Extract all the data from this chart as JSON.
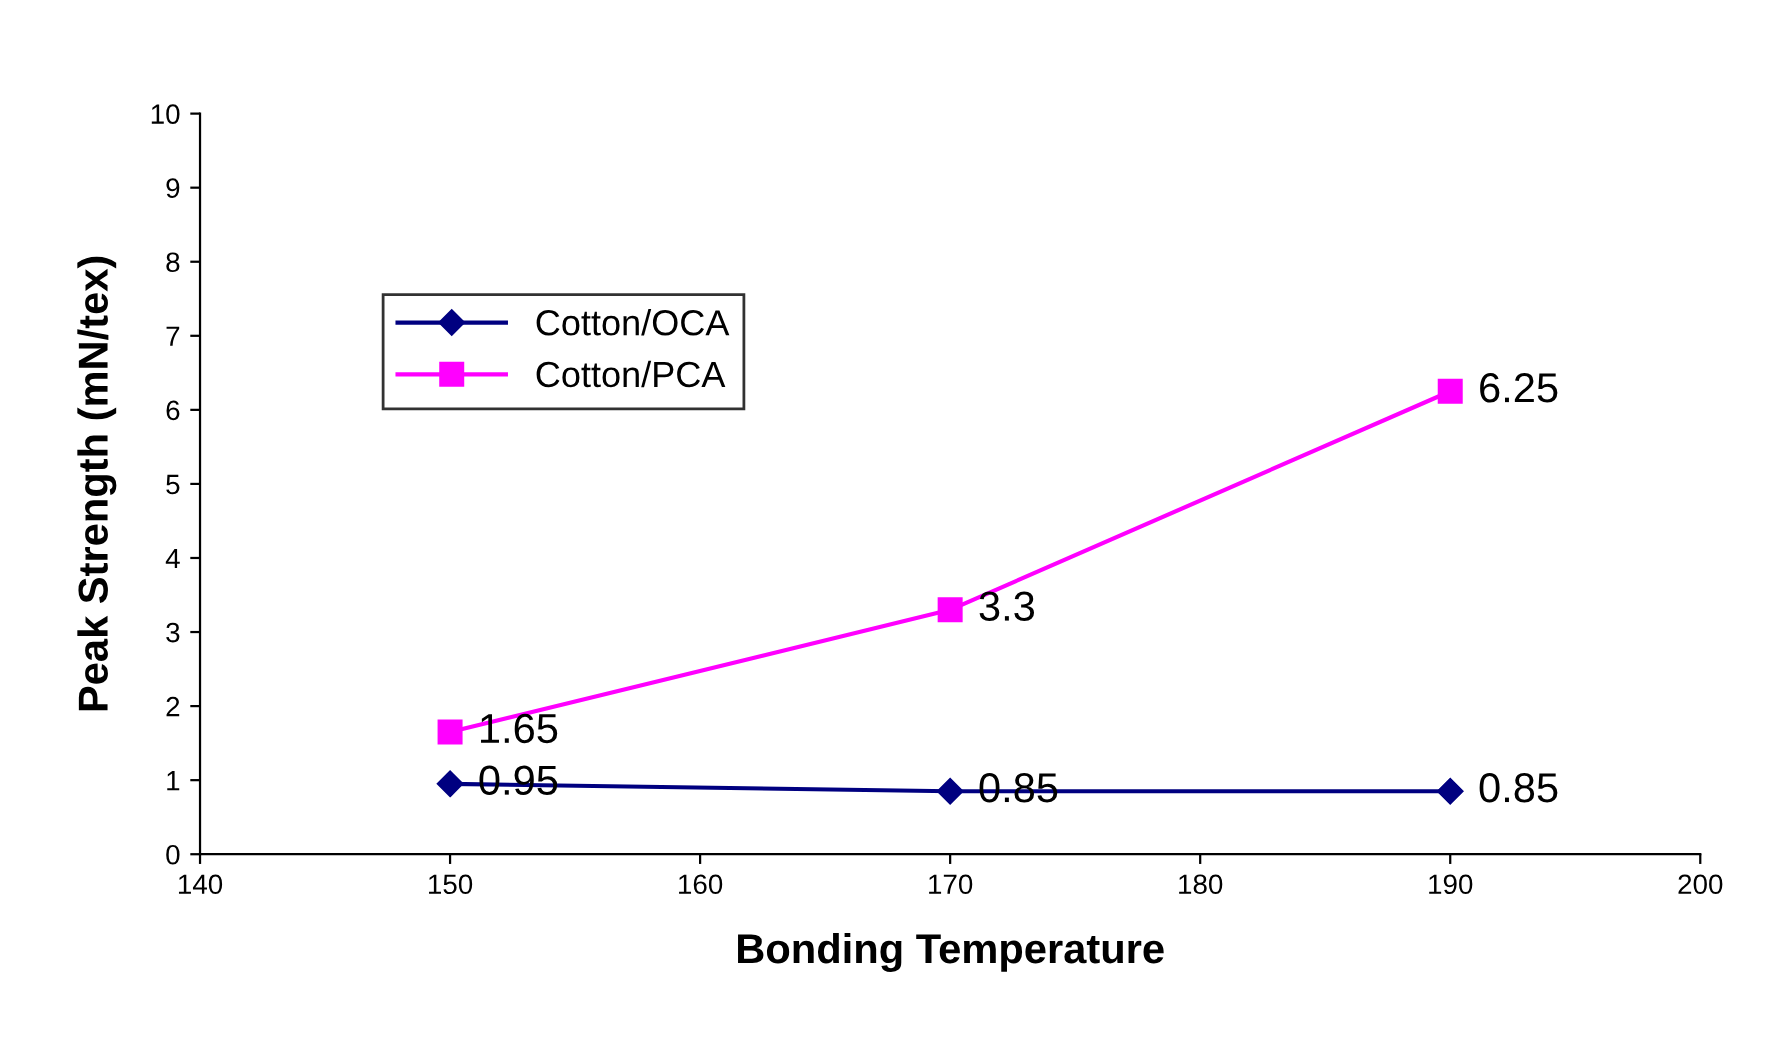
{
  "chart_data": {
    "type": "line",
    "xlabel": "Bonding Temperature",
    "ylabel": "Peak Strength (mN/tex)",
    "x": [
      150,
      170,
      190
    ],
    "series": [
      {
        "name": "Cotton/OCA",
        "color": "#000080",
        "values": [
          0.95,
          0.85,
          0.85
        ],
        "marker": "diamond"
      },
      {
        "name": "Cotton/PCA",
        "color": "#ff00ff",
        "values": [
          1.65,
          3.3,
          6.25
        ],
        "marker": "square"
      }
    ],
    "xlim": [
      140,
      200
    ],
    "xticks": [
      140,
      150,
      160,
      170,
      180,
      190,
      200
    ],
    "ylim": [
      0,
      10
    ],
    "yticks": [
      0,
      1,
      2,
      3,
      4,
      5,
      6,
      7,
      8,
      9,
      10
    ],
    "grid": false,
    "legend": "top left",
    "data_labels": true,
    "line_style": "solid"
  }
}
